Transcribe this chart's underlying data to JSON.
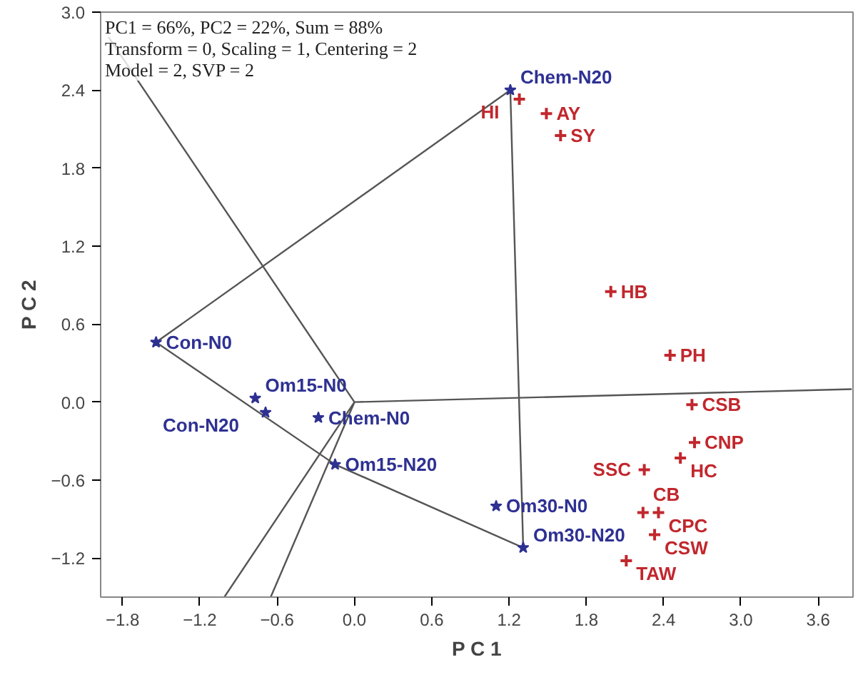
{
  "chart_data": {
    "type": "scatter",
    "xlabel": "P C 1",
    "ylabel": "P C 2",
    "xlim": [
      -1.97,
      3.87
    ],
    "ylim": [
      -1.5,
      3.0
    ],
    "xticks": [
      -1.8,
      -1.2,
      -0.6,
      {
        "value": 0,
        "label": "0.0"
      },
      0.6,
      1.2,
      1.8,
      2.4,
      {
        "value": 3,
        "label": "3.0"
      },
      3.6
    ],
    "yticks": [
      -1.2,
      -0.6,
      {
        "value": 0,
        "label": "0.0"
      },
      0.6,
      1.2,
      1.8,
      2.4,
      {
        "value": 3,
        "label": "3.0"
      }
    ],
    "grid": false,
    "series": [
      {
        "type": "line",
        "color": "#555555",
        "x": [
          -1.54,
          1.21
        ],
        "values": [
          0.46,
          2.4
        ]
      },
      {
        "type": "line",
        "color": "#555555",
        "x": [
          1.21,
          1.31
        ],
        "values": [
          2.4,
          -1.12
        ]
      },
      {
        "type": "line",
        "color": "#555555",
        "x": [
          1.31,
          -0.15
        ],
        "values": [
          -1.12,
          -0.48
        ]
      },
      {
        "type": "line",
        "color": "#555555",
        "x": [
          -0.15,
          -1.54
        ],
        "values": [
          -0.48,
          0.46
        ]
      },
      {
        "type": "line",
        "color": "#555555",
        "x": [
          0,
          -1.91
        ],
        "values": [
          0,
          2.81
        ]
      },
      {
        "type": "line",
        "color": "#555555",
        "x": [
          0,
          3.86
        ],
        "values": [
          0,
          0.1
        ]
      },
      {
        "type": "line",
        "color": "#555555",
        "x": [
          0,
          -1.01
        ],
        "values": [
          0,
          -1.5
        ]
      },
      {
        "type": "line",
        "color": "#555555",
        "x": [
          0,
          -0.65
        ],
        "values": [
          0,
          -1.5
        ]
      },
      {
        "marker": "star",
        "color": "#2e3192",
        "x": [
          -1.54,
          -0.77,
          -0.69,
          -0.28,
          -0.15,
          1.1,
          1.31,
          1.21
        ],
        "values": [
          0.46,
          0.03,
          -0.08,
          -0.12,
          -0.48,
          -0.8,
          -1.12,
          2.4
        ]
      },
      {
        "marker": "cross",
        "color": "#c1272d",
        "x": [
          1.28,
          1.49,
          1.6,
          1.99,
          2.45,
          2.62,
          2.64,
          2.53,
          2.25,
          2.24,
          2.36,
          2.33,
          2.11
        ],
        "values": [
          2.33,
          2.22,
          2.05,
          0.85,
          0.36,
          -0.02,
          -0.31,
          -0.43,
          -0.52,
          -0.85,
          -0.85,
          -1.02,
          -1.22
        ]
      }
    ],
    "annotations": [
      "PC1 = 66%, PC2 = 22%, Sum = 88%",
      "Transform = 0, Scaling = 1, Centering = 2",
      "Model = 2, SVP = 2",
      {
        "text": "Con-N0",
        "x": -1.54,
        "y": 0.46
      },
      {
        "text": "Om15-N0",
        "x": -0.77,
        "y": 0.03
      },
      {
        "text": "Con-N20",
        "x": -0.69,
        "y": -0.08
      },
      {
        "text": "Chem-N0",
        "x": -0.28,
        "y": -0.12
      },
      {
        "text": "Om15-N20",
        "x": -0.15,
        "y": -0.48
      },
      {
        "text": "Om30-N0",
        "x": 1.1,
        "y": -0.8
      },
      {
        "text": "Om30-N20",
        "x": 1.31,
        "y": -1.12
      },
      {
        "text": "Chem-N20",
        "x": 1.21,
        "y": 2.4
      },
      {
        "text": "HI",
        "x": 1.28,
        "y": 2.33
      },
      {
        "text": "AY",
        "x": 1.49,
        "y": 2.22
      },
      {
        "text": "SY",
        "x": 1.6,
        "y": 2.05
      },
      {
        "text": "HB",
        "x": 1.99,
        "y": 0.85
      },
      {
        "text": "PH",
        "x": 2.45,
        "y": 0.36
      },
      {
        "text": "CSB",
        "x": 2.62,
        "y": -0.02
      },
      {
        "text": "CNP",
        "x": 2.64,
        "y": -0.31
      },
      {
        "text": "HC",
        "x": 2.53,
        "y": -0.43
      },
      {
        "text": "SSC",
        "x": 2.25,
        "y": -0.52
      },
      {
        "text": "CB",
        "x": 2.24,
        "y": -0.85
      },
      {
        "text": "CPC",
        "x": 2.36,
        "y": -0.85
      },
      {
        "text": "CSW",
        "x": 2.33,
        "y": -1.02
      },
      {
        "text": "TAW",
        "x": 2.11,
        "y": -1.22
      }
    ]
  }
}
